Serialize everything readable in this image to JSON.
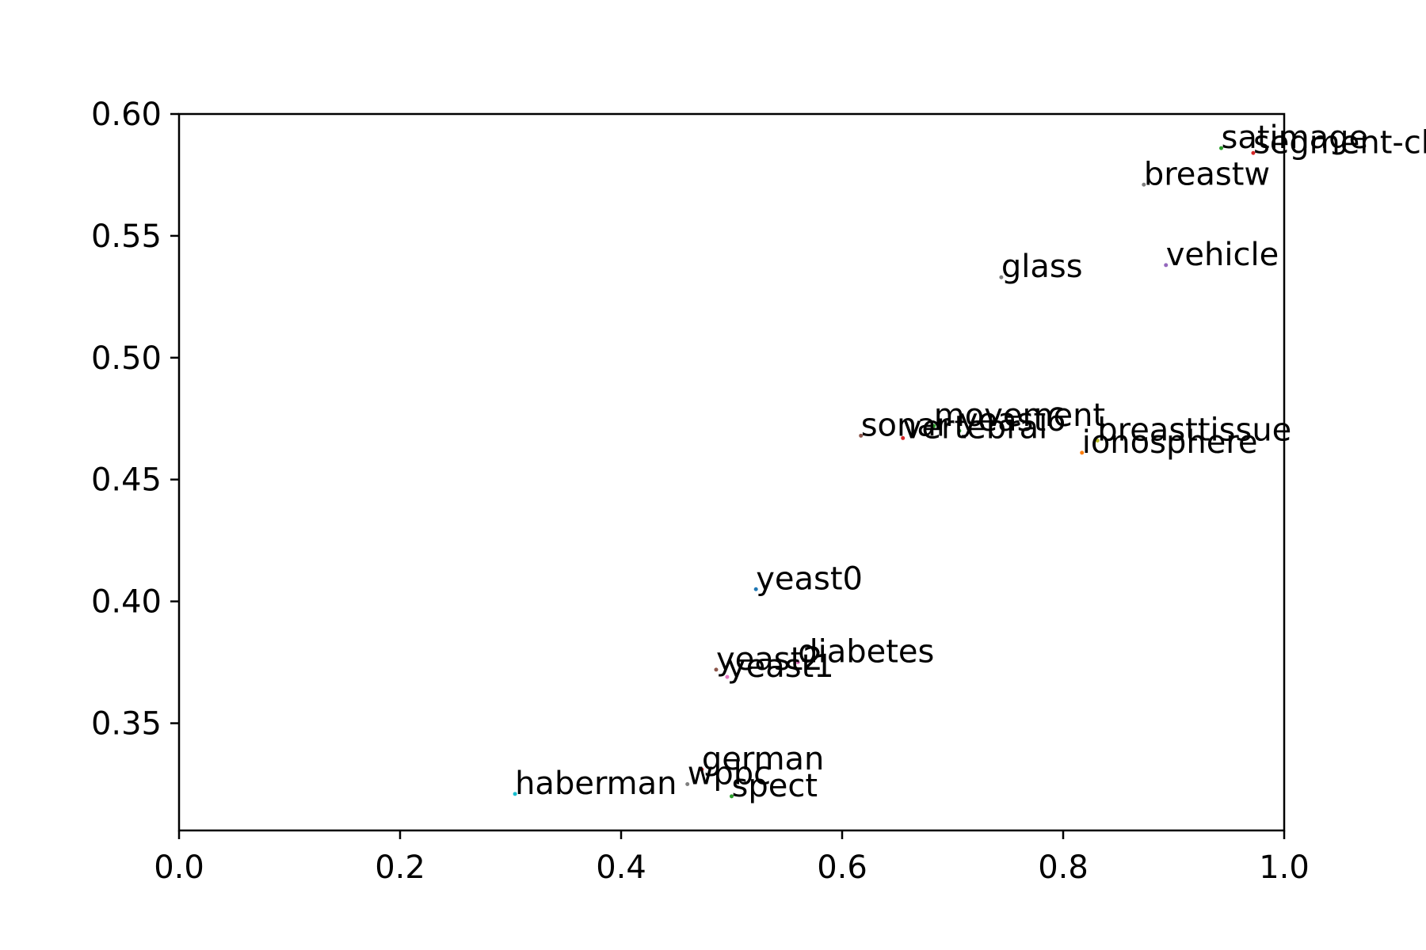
{
  "chart_data": {
    "type": "scatter",
    "title": "",
    "xlabel": "",
    "ylabel": "",
    "xlim": [
      0.0,
      1.0
    ],
    "ylim": [
      0.306,
      0.6
    ],
    "grid": false,
    "legend": "none",
    "x_ticks": [
      "0.0",
      "0.2",
      "0.4",
      "0.6",
      "0.8",
      "1.0"
    ],
    "y_ticks": [
      "0.35",
      "0.40",
      "0.45",
      "0.50",
      "0.55",
      "0.60"
    ],
    "points": [
      {
        "label": "satimage",
        "x": 0.943,
        "y": 0.586,
        "color": "#2ca02c"
      },
      {
        "label": "segment-ch",
        "x": 0.972,
        "y": 0.584,
        "color": "#d62728"
      },
      {
        "label": "breastw",
        "x": 0.873,
        "y": 0.571,
        "color": "#7f7f7f"
      },
      {
        "label": "vehicle",
        "x": 0.893,
        "y": 0.538,
        "color": "#9467bd"
      },
      {
        "label": "glass",
        "x": 0.744,
        "y": 0.533,
        "color": "#7f7f7f"
      },
      {
        "label": "movement",
        "x": 0.683,
        "y": 0.472,
        "color": "#2ca02c"
      },
      {
        "label": "yeast6",
        "x": 0.706,
        "y": 0.47,
        "color": "#2ca02c"
      },
      {
        "label": "sonar",
        "x": 0.617,
        "y": 0.468,
        "color": "#8c564b"
      },
      {
        "label": "vertebral",
        "x": 0.655,
        "y": 0.467,
        "color": "#d62728"
      },
      {
        "label": "breasttissue",
        "x": 0.831,
        "y": 0.466,
        "color": "#bcbd22"
      },
      {
        "label": "ionosphere",
        "x": 0.817,
        "y": 0.461,
        "color": "#ff7f0e"
      },
      {
        "label": "yeast0",
        "x": 0.522,
        "y": 0.405,
        "color": "#1f77b4"
      },
      {
        "label": "diabetes",
        "x": 0.56,
        "y": 0.375,
        "color": "#e377c2"
      },
      {
        "label": "yeast2",
        "x": 0.486,
        "y": 0.372,
        "color": "#8c564b"
      },
      {
        "label": "yeast1",
        "x": 0.496,
        "y": 0.369,
        "color": "#e377c2"
      },
      {
        "label": "german",
        "x": 0.473,
        "y": 0.331,
        "color": "#d62728"
      },
      {
        "label": "wpbc",
        "x": 0.46,
        "y": 0.325,
        "color": "#7f7f7f"
      },
      {
        "label": "spect",
        "x": 0.5,
        "y": 0.32,
        "color": "#2ca02c"
      },
      {
        "label": "haberman",
        "x": 0.304,
        "y": 0.321,
        "color": "#17becf"
      }
    ]
  }
}
